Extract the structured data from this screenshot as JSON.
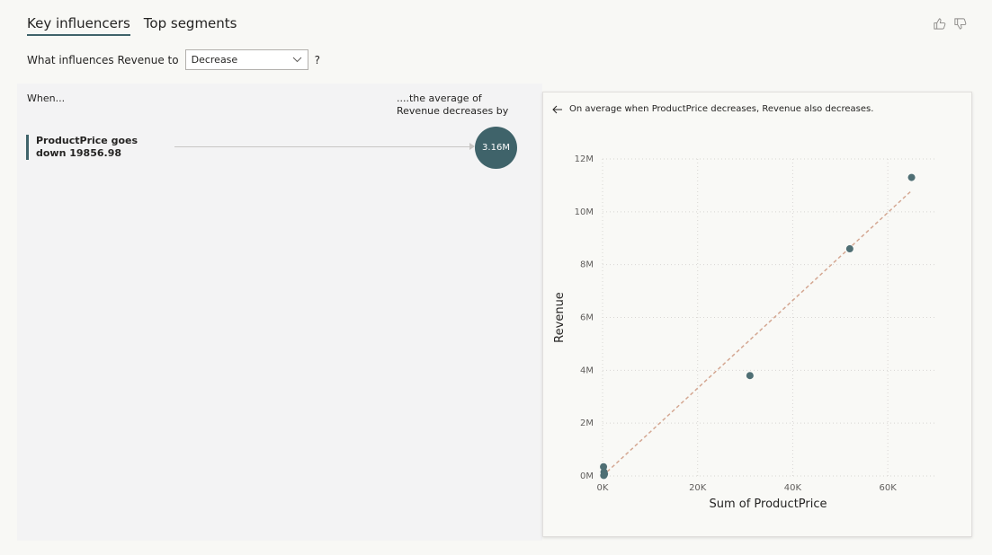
{
  "tabs": [
    {
      "label": "Key influencers",
      "active": true
    },
    {
      "label": "Top segments",
      "active": false
    }
  ],
  "feedback": {
    "like_icon": "thumbs-up-icon",
    "dislike_icon": "thumbs-down-icon"
  },
  "question": {
    "prefix": "What influences Revenue to",
    "selected_value": "Decrease",
    "help": "?"
  },
  "left_panel": {
    "when_label": "When...",
    "avg_label_line1": "....the average of",
    "avg_label_line2": "Revenue decreases by",
    "influencers": [
      {
        "line1": "ProductPrice goes",
        "line2": "down 19856.98",
        "value_label": "3.16M"
      }
    ]
  },
  "right_panel": {
    "back_icon": "arrow-left-icon",
    "description": "On average when ProductPrice decreases, Revenue also decreases."
  },
  "colors": {
    "accent": "#3f636a",
    "trend": "#d4a792",
    "point": "#4f6f74"
  },
  "chart_data": {
    "type": "scatter",
    "xlabel": "Sum of ProductPrice",
    "ylabel": "Revenue",
    "xlim": [
      0,
      70000
    ],
    "ylim": [
      0,
      12000000
    ],
    "x_ticks": [
      0,
      20000,
      40000,
      60000
    ],
    "x_tick_labels": [
      "0K",
      "20K",
      "40K",
      "60K"
    ],
    "y_ticks": [
      0,
      2000000,
      4000000,
      6000000,
      8000000,
      10000000,
      12000000
    ],
    "y_tick_labels": [
      "0M",
      "2M",
      "4M",
      "6M",
      "8M",
      "10M",
      "12M"
    ],
    "grid": true,
    "points": [
      {
        "x": 65000,
        "y": 11300000
      },
      {
        "x": 52000,
        "y": 8600000
      },
      {
        "x": 31000,
        "y": 3800000
      },
      {
        "x": 200,
        "y": 350000
      },
      {
        "x": 300,
        "y": 150000
      },
      {
        "x": 400,
        "y": 80000
      },
      {
        "x": 350,
        "y": 50000
      },
      {
        "x": 250,
        "y": 20000
      }
    ],
    "trend_line": {
      "x1": 0,
      "y1": 0,
      "x2": 65000,
      "y2": 10800000
    }
  }
}
